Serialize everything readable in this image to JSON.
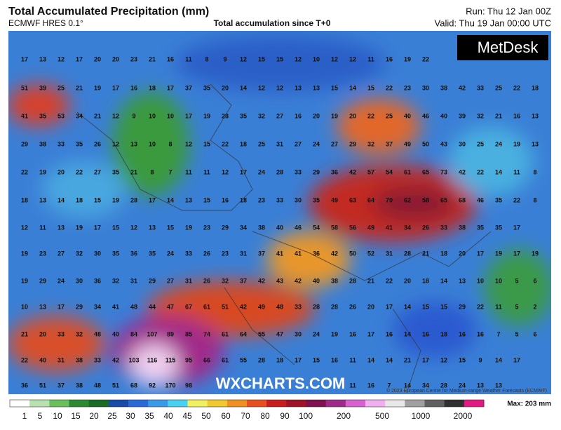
{
  "header": {
    "title": "Total Accumulated Precipitation (mm)",
    "model": "ECMWF HRES 0.1°",
    "subtitle": "Total accumulation since T+0",
    "run": "Run: Thu 12 Jan 00Z",
    "valid": "Valid: Thu 19 Jan 00:00 UTC"
  },
  "logo": "MetDesk",
  "watermark": "WXCHARTS.COM",
  "copyright": "© 2023 European Centre for Medium-range Weather Forecasts (ECMWF)",
  "grid": [
    [
      17,
      13,
      12,
      17,
      20,
      20,
      23,
      21,
      16,
      11,
      8,
      9,
      12,
      15,
      15,
      12,
      10,
      12,
      12,
      11,
      16,
      19,
      22
    ],
    [
      51,
      39,
      25,
      21,
      19,
      17,
      16,
      18,
      17,
      37,
      35,
      20,
      14,
      12,
      12,
      13,
      13,
      15,
      14,
      15,
      22,
      23,
      30,
      38,
      42,
      33,
      25,
      22,
      18
    ],
    [
      41,
      35,
      53,
      34,
      21,
      12,
      9,
      10,
      10,
      17,
      19,
      28,
      35,
      32,
      27,
      16,
      20,
      19,
      20,
      22,
      25,
      40,
      46,
      40,
      39,
      32,
      21,
      16,
      13
    ],
    [
      29,
      38,
      33,
      35,
      26,
      12,
      13,
      10,
      8,
      12,
      15,
      22,
      18,
      25,
      31,
      27,
      24,
      27,
      29,
      32,
      37,
      49,
      50,
      43,
      30,
      25,
      24,
      19,
      13
    ],
    [
      22,
      19,
      20,
      22,
      27,
      35,
      21,
      8,
      7,
      11,
      11,
      12,
      17,
      24,
      28,
      33,
      29,
      36,
      42,
      57,
      54,
      61,
      65,
      73,
      42,
      22,
      14,
      11,
      8
    ],
    [
      18,
      13,
      14,
      18,
      15,
      19,
      28,
      17,
      14,
      13,
      15,
      16,
      18,
      23,
      33,
      30,
      35,
      49,
      63,
      64,
      70,
      62,
      58,
      65,
      68,
      46,
      35,
      22,
      8
    ],
    [
      12,
      11,
      13,
      19,
      17,
      15,
      12,
      13,
      15,
      19,
      23,
      29,
      34,
      38,
      40,
      46,
      54,
      58,
      56,
      49,
      41,
      34,
      26,
      33,
      38,
      35,
      35,
      17
    ],
    [
      19,
      23,
      27,
      32,
      30,
      35,
      36,
      35,
      24,
      33,
      26,
      23,
      31,
      37,
      41,
      41,
      36,
      42,
      50,
      52,
      31,
      28,
      21,
      18,
      20,
      17,
      19,
      17,
      19
    ],
    [
      19,
      29,
      24,
      30,
      36,
      32,
      31,
      29,
      27,
      31,
      26,
      32,
      37,
      42,
      43,
      42,
      40,
      38,
      28,
      21,
      22,
      20,
      18,
      14,
      13,
      10,
      10,
      5,
      6
    ],
    [
      10,
      13,
      17,
      29,
      34,
      41,
      48,
      44,
      47,
      67,
      61,
      51,
      42,
      49,
      48,
      33,
      28,
      28,
      26,
      20,
      17,
      14,
      15,
      15,
      29,
      22,
      11,
      5,
      2
    ],
    [
      21,
      20,
      33,
      32,
      48,
      40,
      84,
      107,
      89,
      85,
      74,
      61,
      64,
      55,
      47,
      30,
      24,
      19,
      16,
      17,
      16,
      14,
      16,
      18,
      16,
      16,
      7,
      5,
      6
    ],
    [
      22,
      40,
      31,
      38,
      33,
      42,
      103,
      116,
      115,
      95,
      66,
      61,
      55,
      28,
      18,
      17,
      15,
      16,
      11,
      14,
      14,
      21,
      17,
      12,
      15,
      9,
      14,
      17
    ],
    [
      36,
      51,
      37,
      38,
      48,
      51,
      68,
      92,
      170,
      98,
      null,
      null,
      null,
      null,
      null,
      null,
      null,
      null,
      11,
      16,
      7,
      14,
      34,
      28,
      24,
      13,
      13
    ]
  ],
  "legend": {
    "labels": [
      1,
      5,
      10,
      15,
      20,
      25,
      30,
      35,
      40,
      45,
      50,
      60,
      70,
      80,
      90,
      100,
      200,
      500,
      1000,
      2000
    ],
    "max": "Max: 203 mm"
  }
}
